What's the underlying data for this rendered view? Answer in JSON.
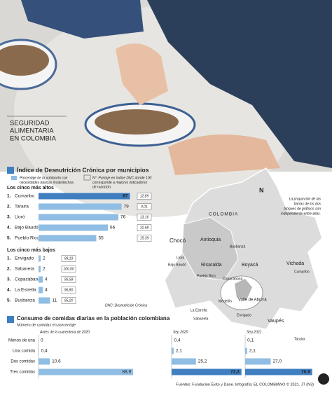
{
  "header": {
    "title_lines": [
      "SEGURIDAD",
      "ALIMENTARIA",
      "EN COLOMBIA"
    ]
  },
  "chart_data": [
    {
      "type": "hbar",
      "title": "Índice de Desnutrición Crónica por municipios",
      "legend_pct": [
        "Porcentaje de la población con",
        "necesidades básicas insatisfechas."
      ],
      "legend_score": [
        "N°: Puntaje en índice DNC donde 100",
        "corresponde a mejores indicadores",
        "de nutrición."
      ],
      "subtitle": "Los cinco más altos",
      "rank_labels": [
        "1.",
        "2.",
        "3.",
        "4.",
        "5."
      ],
      "categories": [
        "Cumaribo",
        "Taraira",
        "Lloró",
        "Bajo Baudó",
        "Pueblo Rico"
      ],
      "values": [
        87,
        79,
        76,
        66,
        55
      ],
      "scores": [
        12.89,
        0.01,
        13.16,
        10.68,
        15.39
      ],
      "score_labels": [
        "12,89",
        "0,01",
        "13,16",
        "10,68",
        "15,39"
      ],
      "color": "#8fbde3"
    },
    {
      "type": "hbar",
      "subtitle": "Los cinco más bajos",
      "rank_labels": [
        "1.",
        "2.",
        "3.",
        "4.",
        "5."
      ],
      "categories": [
        "Envigado",
        "Sabaneta",
        "Copacabana",
        "La Estrella",
        "Busbanzá"
      ],
      "values": [
        2,
        2,
        4,
        4,
        11
      ],
      "scores": [
        99.19,
        100,
        95.58,
        96.8,
        95.2
      ],
      "score_labels": [
        "99,19",
        "100,00",
        "95,58",
        "96,80",
        "95,20"
      ],
      "source": "DNC: Desnutrición Crónica",
      "color": "#8fbde3"
    },
    {
      "type": "panels",
      "title": "Consumo de comidas diarias en la población colombiana",
      "subtitle": "Número de comidas en porcentaje",
      "categories": [
        "Menos de una",
        "Una comida",
        "Dos comidas",
        "Tres comidas"
      ],
      "series": [
        {
          "name": "Antes de la cuarentena de 2020",
          "color": "#8fbde3",
          "values": [
            0,
            0.4,
            10.6,
            88.9
          ],
          "value_labels": [
            "0",
            "0,4",
            "10,6",
            "88,9"
          ]
        },
        {
          "name": "Sep 2020",
          "color": "#3f7fc0",
          "values": [
            0.4,
            2.1,
            25.2,
            72.3
          ],
          "value_labels": [
            "0,4",
            "2,1",
            "25,2",
            "72,3"
          ]
        },
        {
          "name": "Sep 2021",
          "color": "#3f7fc0",
          "values": [
            0.1,
            2.1,
            27.0,
            70.9
          ],
          "value_labels": [
            "0,1",
            "2,1",
            "27,0",
            "70,9"
          ]
        }
      ]
    }
  ],
  "map": {
    "north": "N",
    "country": "COLOMBIA",
    "note": [
      "La proporción de las",
      "barras de los dos",
      "bloques de gráficos son",
      "independiente entre ellas."
    ],
    "labels": [
      "Chocó",
      "Antioquia",
      "Busbanzá",
      "Lloró",
      "Risaralda",
      "Boyacá",
      "Bajo Baudó",
      "Pueblo Rico",
      "Copacabana",
      "Vichada",
      "Cumaribo",
      "Medellín",
      "Valle de Aburrá",
      "La Estrella",
      "Envigado",
      "Sabaneta",
      "Vaupés",
      "Taraira"
    ]
  },
  "footer": "Fuentes: Fundación Éxito y Dane. Infografía: EL COLOMBIANO © 2021. JT (N3)"
}
